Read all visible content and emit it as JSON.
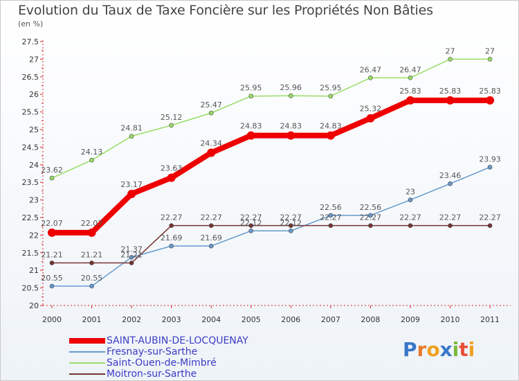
{
  "chart_data": {
    "type": "line",
    "title": "Evolution du Taux de Taxe Foncière sur les Propriétés Non Bâties",
    "ylabel": "(en %)",
    "xlabel": "",
    "categories": [
      "2000",
      "2001",
      "2002",
      "2003",
      "2004",
      "2005",
      "2006",
      "2007",
      "2008",
      "2009",
      "2010",
      "2011"
    ],
    "ylim": [
      20,
      27.5
    ],
    "yticks": [
      "20",
      "20.5",
      "21",
      "21.5",
      "22",
      "22.5",
      "23",
      "23.5",
      "24",
      "24.5",
      "25",
      "25.5",
      "26",
      "26.5",
      "27",
      "27.5"
    ],
    "grid": false,
    "series": [
      {
        "name": "SAINT-AUBIN-DE-LOCQUENAY",
        "color": "#ee0000",
        "values": [
          22.07,
          22.07,
          23.17,
          23.63,
          24.34,
          24.83,
          24.83,
          24.83,
          25.32,
          25.83,
          25.83,
          25.83
        ],
        "labels": [
          "22.07",
          "22.07",
          "23.17",
          "23.63",
          "24.34",
          "24.83",
          "24.83",
          "24.83",
          "25.32",
          "25.83",
          "25.83",
          "25.83"
        ]
      },
      {
        "name": "Fresnay-sur-Sarthe",
        "color": "#6699cc",
        "values": [
          20.55,
          20.55,
          21.37,
          21.69,
          21.69,
          22.12,
          22.12,
          22.56,
          22.56,
          23,
          23.46,
          23.93
        ],
        "labels": [
          "20.55",
          "20.55",
          "21.37",
          "21.69",
          "21.69",
          "22.12",
          "22.12",
          "22.56",
          "22.56",
          "23",
          "23.46",
          "23.93"
        ]
      },
      {
        "name": "Saint-Ouen-de-Mimbré",
        "color": "#99dd66",
        "values": [
          23.62,
          24.13,
          24.81,
          25.12,
          25.47,
          25.95,
          25.96,
          25.95,
          26.47,
          26.47,
          27,
          27
        ],
        "labels": [
          "23.62",
          "24.13",
          "24.81",
          "25.12",
          "25.47",
          "25.95",
          "25.96",
          "25.95",
          "26.47",
          "26.47",
          "27",
          "27"
        ]
      },
      {
        "name": "Moitron-sur-Sarthe",
        "color": "#773333",
        "values": [
          21.21,
          21.21,
          21.21,
          22.27,
          22.27,
          22.27,
          22.27,
          22.27,
          22.27,
          22.27,
          22.27,
          22.27
        ],
        "labels": [
          "21.21",
          "21.21",
          "21.21",
          "22.27",
          "22.27",
          "22.27",
          "22.27",
          "22.27",
          "22.27",
          "22.27",
          "22.27",
          "22.27"
        ]
      }
    ]
  },
  "logo": {
    "text": "Proxiti"
  }
}
